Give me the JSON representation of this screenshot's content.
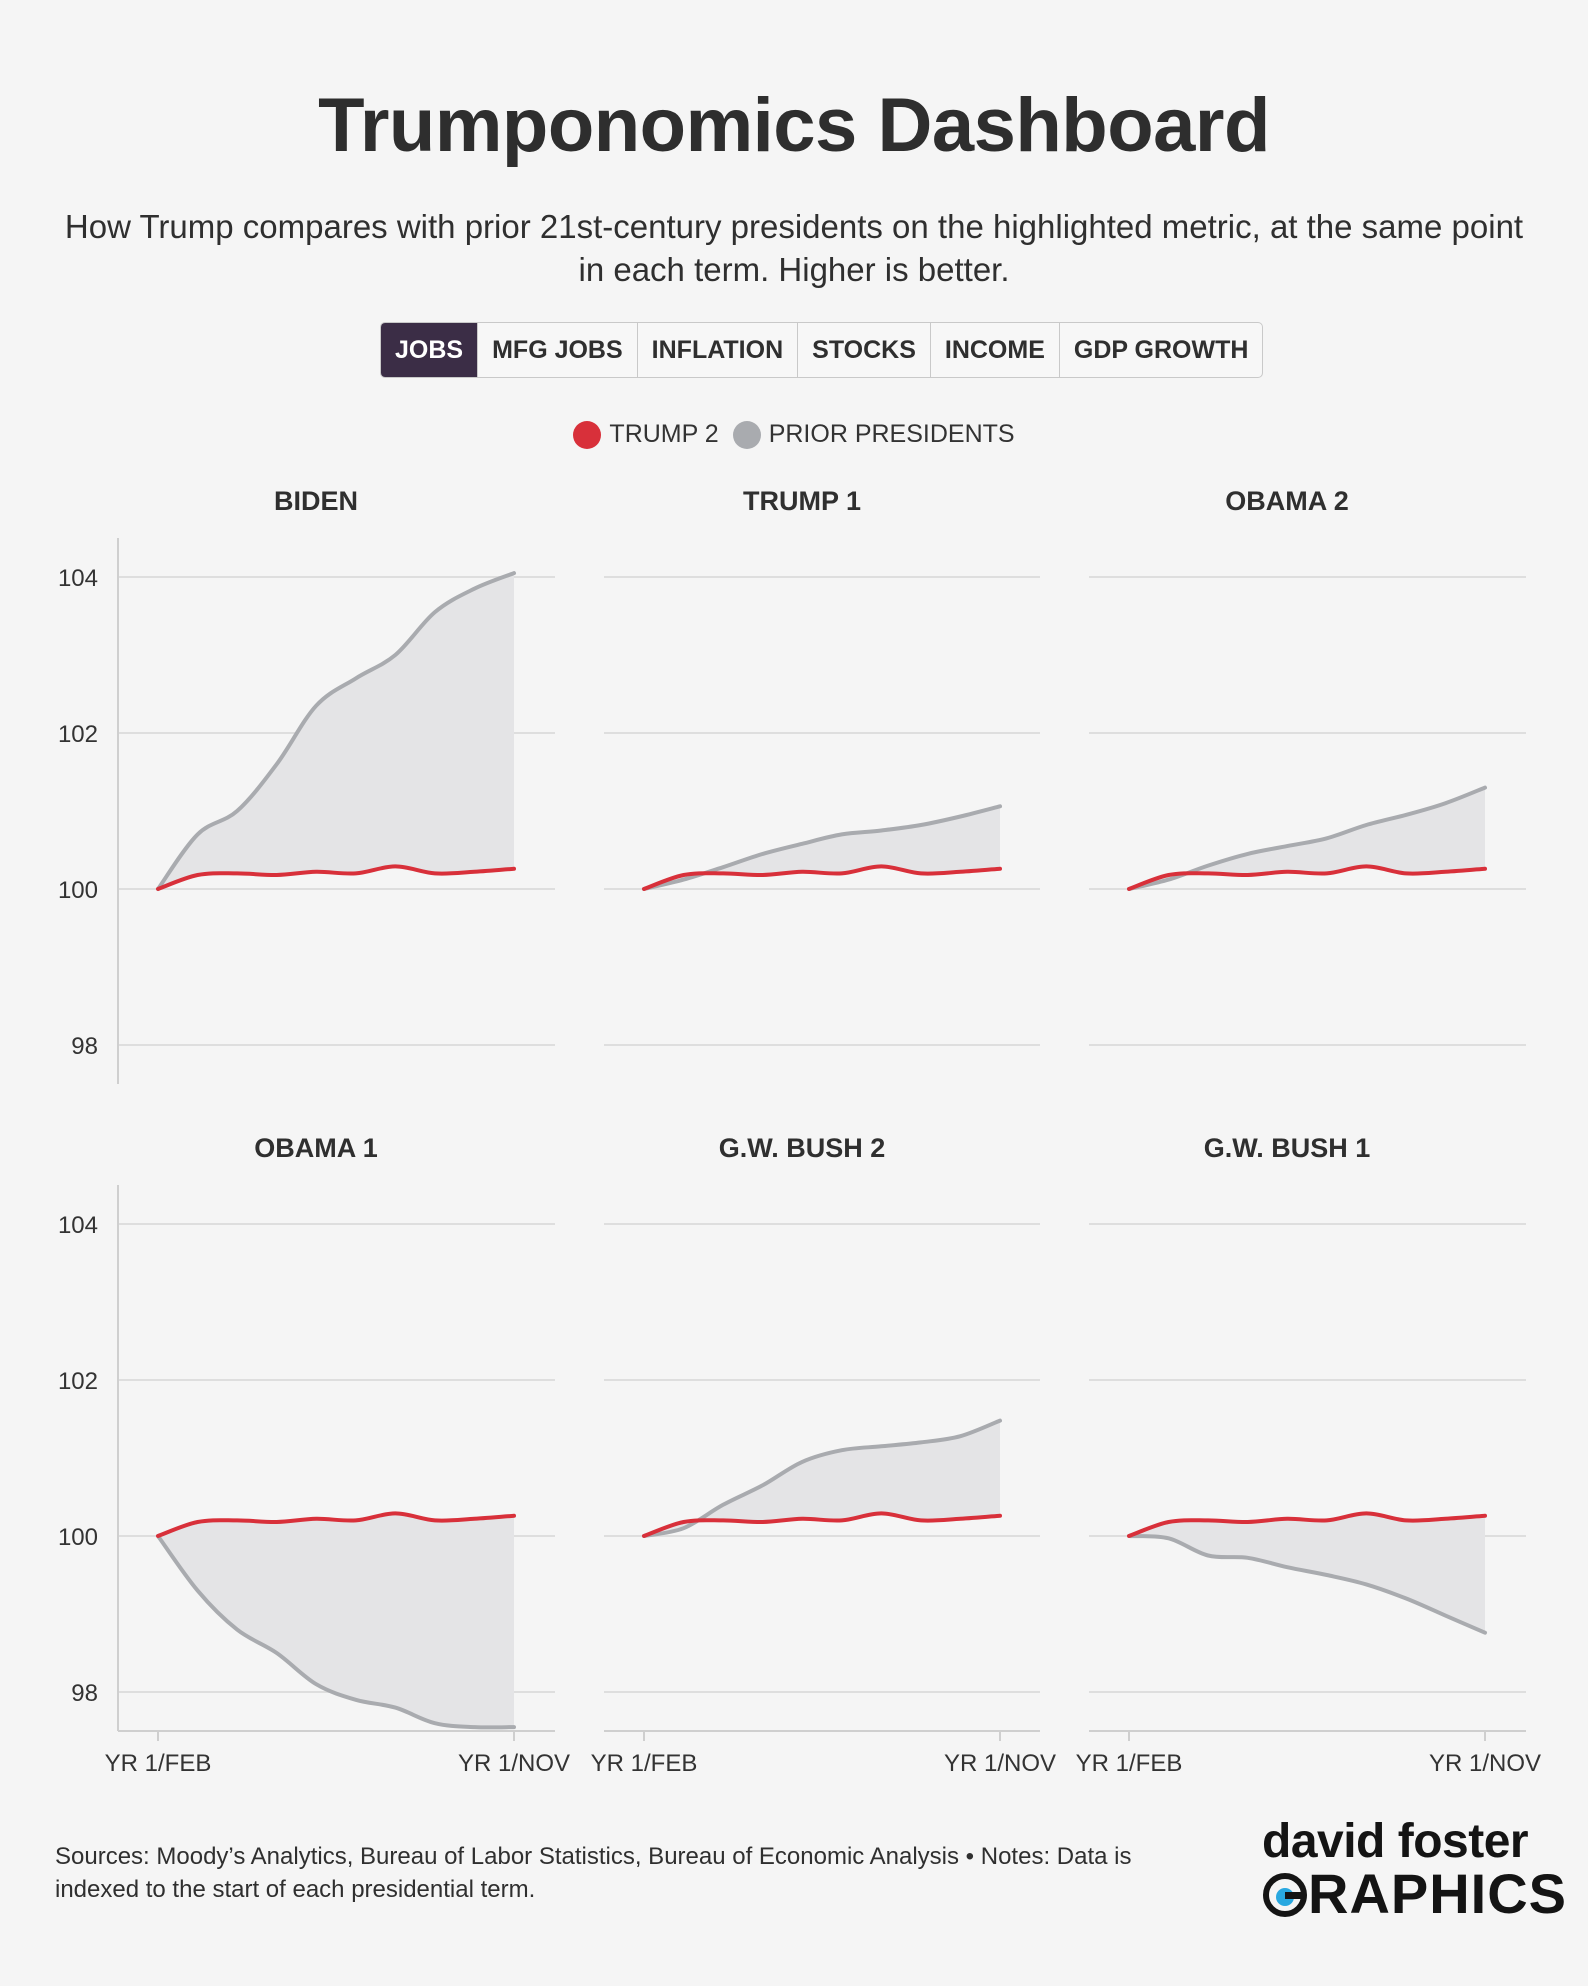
{
  "title": "Trumponomics Dashboard",
  "subtitle": "How Trump compares with prior 21st-century presidents on the highlighted metric, at the same point in each term. Higher is better.",
  "tabs": [
    {
      "label": "JOBS",
      "active": true
    },
    {
      "label": "MFG JOBS",
      "active": false
    },
    {
      "label": "INFLATION",
      "active": false
    },
    {
      "label": "STOCKS",
      "active": false
    },
    {
      "label": "INCOME",
      "active": false
    },
    {
      "label": "GDP GROWTH",
      "active": false
    }
  ],
  "legend": {
    "trump2": {
      "label": "TRUMP 2",
      "color": "#d8303a"
    },
    "prior": {
      "label": "PRIOR PRESIDENTS",
      "color": "#a9abaf"
    }
  },
  "colors": {
    "area": "#e4e4e6",
    "grid": "#dedede",
    "axis": "#cfcfcf"
  },
  "footer": "Sources: Moody’s Analytics, Bureau of Labor Statistics, Bureau of Economic Analysis • Notes: Data is indexed to the start of each presidential term.",
  "logo": {
    "line1": "david foster",
    "line2": "GRAPHICS"
  },
  "chart_data": {
    "type": "line",
    "ylim": [
      97.5,
      104.5
    ],
    "yticks": [
      98,
      100,
      102,
      104
    ],
    "xlabels": [
      "YR 1/FEB",
      "YR 1/NOV"
    ],
    "x": [
      "Feb",
      "Mar",
      "Apr",
      "May",
      "Jun",
      "Jul",
      "Aug",
      "Sep",
      "Oct",
      "Nov"
    ],
    "trump2": [
      100,
      100.18,
      100.2,
      100.18,
      100.22,
      100.2,
      100.29,
      100.2,
      100.22,
      100.26
    ],
    "panels": [
      {
        "name": "BIDEN",
        "values": [
          100,
          100.7,
          101.0,
          101.6,
          102.35,
          102.7,
          103.0,
          103.55,
          103.85,
          104.05
        ]
      },
      {
        "name": "TRUMP 1",
        "values": [
          100,
          100.12,
          100.28,
          100.45,
          100.58,
          100.7,
          100.75,
          100.82,
          100.93,
          101.06
        ]
      },
      {
        "name": "OBAMA 2",
        "values": [
          100,
          100.12,
          100.3,
          100.45,
          100.55,
          100.65,
          100.82,
          100.95,
          101.1,
          101.3
        ]
      },
      {
        "name": "OBAMA 1",
        "values": [
          100,
          99.3,
          98.8,
          98.5,
          98.1,
          97.9,
          97.8,
          97.6,
          97.55,
          97.55
        ]
      },
      {
        "name": "G.W. BUSH 2",
        "values": [
          100,
          100.1,
          100.4,
          100.65,
          100.95,
          101.1,
          101.15,
          101.2,
          101.28,
          101.48
        ]
      },
      {
        "name": "G.W. BUSH 1",
        "values": [
          100,
          99.97,
          99.75,
          99.72,
          99.6,
          99.5,
          99.38,
          99.2,
          98.98,
          98.76
        ]
      }
    ]
  }
}
